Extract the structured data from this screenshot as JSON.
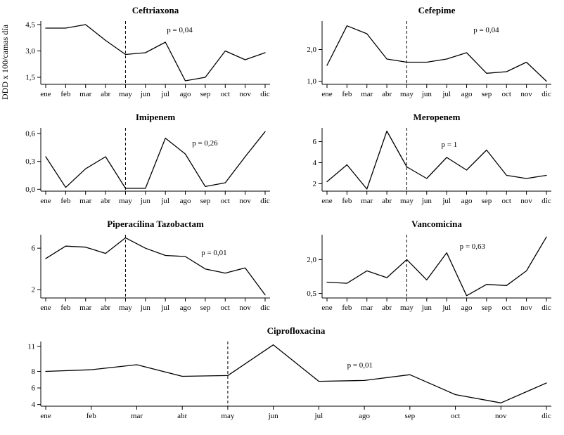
{
  "figure": {
    "y_axis_label": "DDD x 100/camas día"
  },
  "chart_data": [
    {
      "type": "line",
      "title": "Ceftriaxona",
      "p_label": "p = 0,04",
      "p_pos": [
        0.55,
        0.18
      ],
      "categories": [
        "ene",
        "feb",
        "mar",
        "abr",
        "may",
        "jun",
        "jul",
        "ago",
        "sep",
        "oct",
        "nov",
        "dic"
      ],
      "values": [
        4.3,
        4.3,
        4.5,
        3.6,
        2.8,
        2.9,
        3.5,
        1.3,
        1.5,
        3.0,
        2.5,
        2.9
      ],
      "yticks": [
        1.5,
        3.0,
        4.5
      ],
      "ytick_labels": [
        "1,5",
        "3,0",
        "4,5"
      ],
      "ylim": [
        1.1,
        4.7
      ],
      "vline_at": "may",
      "grid": false,
      "legend": "none"
    },
    {
      "type": "line",
      "title": "Cefepime",
      "p_label": "p = 0,04",
      "p_pos": [
        0.66,
        0.18
      ],
      "categories": [
        "ene",
        "feb",
        "mar",
        "abr",
        "may",
        "jun",
        "jul",
        "ago",
        "sep",
        "oct",
        "nov",
        "dic"
      ],
      "values": [
        1.5,
        2.75,
        2.5,
        1.7,
        1.6,
        1.6,
        1.7,
        1.9,
        1.25,
        1.3,
        1.6,
        1.0
      ],
      "yticks": [
        1.0,
        2.0
      ],
      "ytick_labels": [
        "1,0",
        "2,0"
      ],
      "ylim": [
        0.9,
        2.9
      ],
      "vline_at": "may",
      "grid": false,
      "legend": "none"
    },
    {
      "type": "line",
      "title": "Imipenem",
      "p_label": "p = 0,26",
      "p_pos": [
        0.66,
        0.28
      ],
      "categories": [
        "ene",
        "feb",
        "mar",
        "abr",
        "may",
        "jun",
        "jul",
        "ago",
        "sep",
        "oct",
        "nov",
        "dic"
      ],
      "values": [
        0.35,
        0.02,
        0.22,
        0.35,
        0.01,
        0.01,
        0.55,
        0.38,
        0.03,
        0.07,
        0.35,
        0.62
      ],
      "yticks": [
        0.0,
        0.3,
        0.6
      ],
      "ytick_labels": [
        "0,0",
        "0,3",
        "0,6"
      ],
      "ylim": [
        -0.02,
        0.66
      ],
      "vline_at": "may",
      "grid": false,
      "legend": "none"
    },
    {
      "type": "line",
      "title": "Meropenem",
      "p_label": "p = 1",
      "p_pos": [
        0.52,
        0.3
      ],
      "categories": [
        "ene",
        "feb",
        "mar",
        "abr",
        "may",
        "jun",
        "jul",
        "ago",
        "sep",
        "oct",
        "nov",
        "dic"
      ],
      "values": [
        2.2,
        3.8,
        1.5,
        7.0,
        3.6,
        2.5,
        4.5,
        3.3,
        5.2,
        2.8,
        2.5,
        2.8
      ],
      "yticks": [
        2,
        4,
        6
      ],
      "ytick_labels": [
        "2",
        "4",
        "6"
      ],
      "ylim": [
        1.3,
        7.3
      ],
      "vline_at": "may",
      "grid": false,
      "legend": "none"
    },
    {
      "type": "line",
      "title": "Piperacilina Tazobactam",
      "p_label": "p = 0,01",
      "p_pos": [
        0.7,
        0.32
      ],
      "categories": [
        "ene",
        "feb",
        "mar",
        "abr",
        "may",
        "jun",
        "jul",
        "ago",
        "sep",
        "oct",
        "nov",
        "dic"
      ],
      "values": [
        5.0,
        6.2,
        6.1,
        5.5,
        7.0,
        6.0,
        5.3,
        5.2,
        4.0,
        3.6,
        4.1,
        1.5
      ],
      "yticks": [
        2,
        6
      ],
      "ytick_labels": [
        "2",
        "6"
      ],
      "ylim": [
        1.2,
        7.3
      ],
      "vline_at": "may",
      "grid": false,
      "legend": "none"
    },
    {
      "type": "line",
      "title": "Vancomicina",
      "p_label": "p = 0,63",
      "p_pos": [
        0.6,
        0.22
      ],
      "categories": [
        "ene",
        "feb",
        "mar",
        "abr",
        "may",
        "jun",
        "jul",
        "ago",
        "sep",
        "oct",
        "nov",
        "dic"
      ],
      "values": [
        1.0,
        0.95,
        1.5,
        1.2,
        2.0,
        1.1,
        2.3,
        0.4,
        0.9,
        0.85,
        1.5,
        3.0
      ],
      "yticks": [
        0.5,
        2.0
      ],
      "ytick_labels": [
        "0,5",
        "2,0"
      ],
      "ylim": [
        0.3,
        3.1
      ],
      "vline_at": "may",
      "grid": false,
      "legend": "none"
    },
    {
      "type": "line",
      "title": "Ciprofloxacina",
      "p_label": "p = 0,01",
      "p_pos": [
        0.6,
        0.4
      ],
      "categories": [
        "ene",
        "feb",
        "mar",
        "abr",
        "may",
        "jun",
        "jul",
        "ago",
        "sep",
        "oct",
        "nov",
        "dic"
      ],
      "values": [
        8.0,
        8.2,
        8.8,
        7.4,
        7.5,
        11.2,
        6.8,
        6.9,
        7.6,
        5.2,
        4.2,
        6.6
      ],
      "yticks": [
        4,
        6,
        8,
        11
      ],
      "ytick_labels": [
        "4",
        "6",
        "8",
        "11"
      ],
      "ylim": [
        3.8,
        11.6
      ],
      "vline_at": "may",
      "grid": false,
      "legend": "none"
    }
  ]
}
